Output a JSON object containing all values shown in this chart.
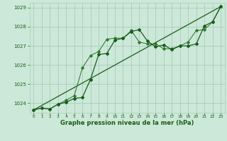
{
  "xlabel": "Graphe pression niveau de la mer (hPa)",
  "background_color": "#cce8d8",
  "grid_color": "#aaccbb",
  "line_color_dark": "#1a5c1a",
  "line_color_med": "#2d7a2d",
  "ylim": [
    1023.5,
    1029.25
  ],
  "xlim": [
    -0.5,
    23.5
  ],
  "yticks": [
    1024,
    1025,
    1026,
    1027,
    1028,
    1029
  ],
  "xticks": [
    0,
    1,
    2,
    3,
    4,
    5,
    6,
    7,
    8,
    9,
    10,
    11,
    12,
    13,
    14,
    15,
    16,
    17,
    18,
    19,
    20,
    21,
    22,
    23
  ],
  "series1_x": [
    0,
    1,
    2,
    3,
    4,
    5,
    6,
    7,
    8,
    9,
    10,
    11,
    12,
    13,
    14,
    15,
    16,
    17,
    18,
    19,
    20,
    21,
    22,
    23
  ],
  "series1_y": [
    1023.65,
    1023.75,
    1023.7,
    1023.95,
    1024.05,
    1024.25,
    1024.3,
    1025.25,
    1026.55,
    1026.6,
    1027.3,
    1027.4,
    1027.75,
    1027.85,
    1027.25,
    1026.95,
    1027.05,
    1026.8,
    1027.0,
    1027.0,
    1027.1,
    1028.05,
    1028.25,
    1029.05
  ],
  "series2_x": [
    0,
    1,
    2,
    3,
    4,
    5,
    6,
    7,
    8,
    9,
    10,
    11,
    12,
    13,
    14,
    15,
    16,
    17,
    18,
    19,
    20,
    21,
    22,
    23
  ],
  "series2_y": [
    1023.65,
    1023.75,
    1023.7,
    1023.95,
    1024.15,
    1024.4,
    1025.85,
    1026.5,
    1026.7,
    1027.35,
    1027.4,
    1027.4,
    1027.8,
    1027.2,
    1027.1,
    1027.1,
    1026.85,
    1026.85,
    1027.0,
    1027.2,
    1027.8,
    1027.85,
    1028.25,
    1029.05
  ],
  "series3_x": [
    0,
    23
  ],
  "series3_y": [
    1023.65,
    1029.05
  ]
}
